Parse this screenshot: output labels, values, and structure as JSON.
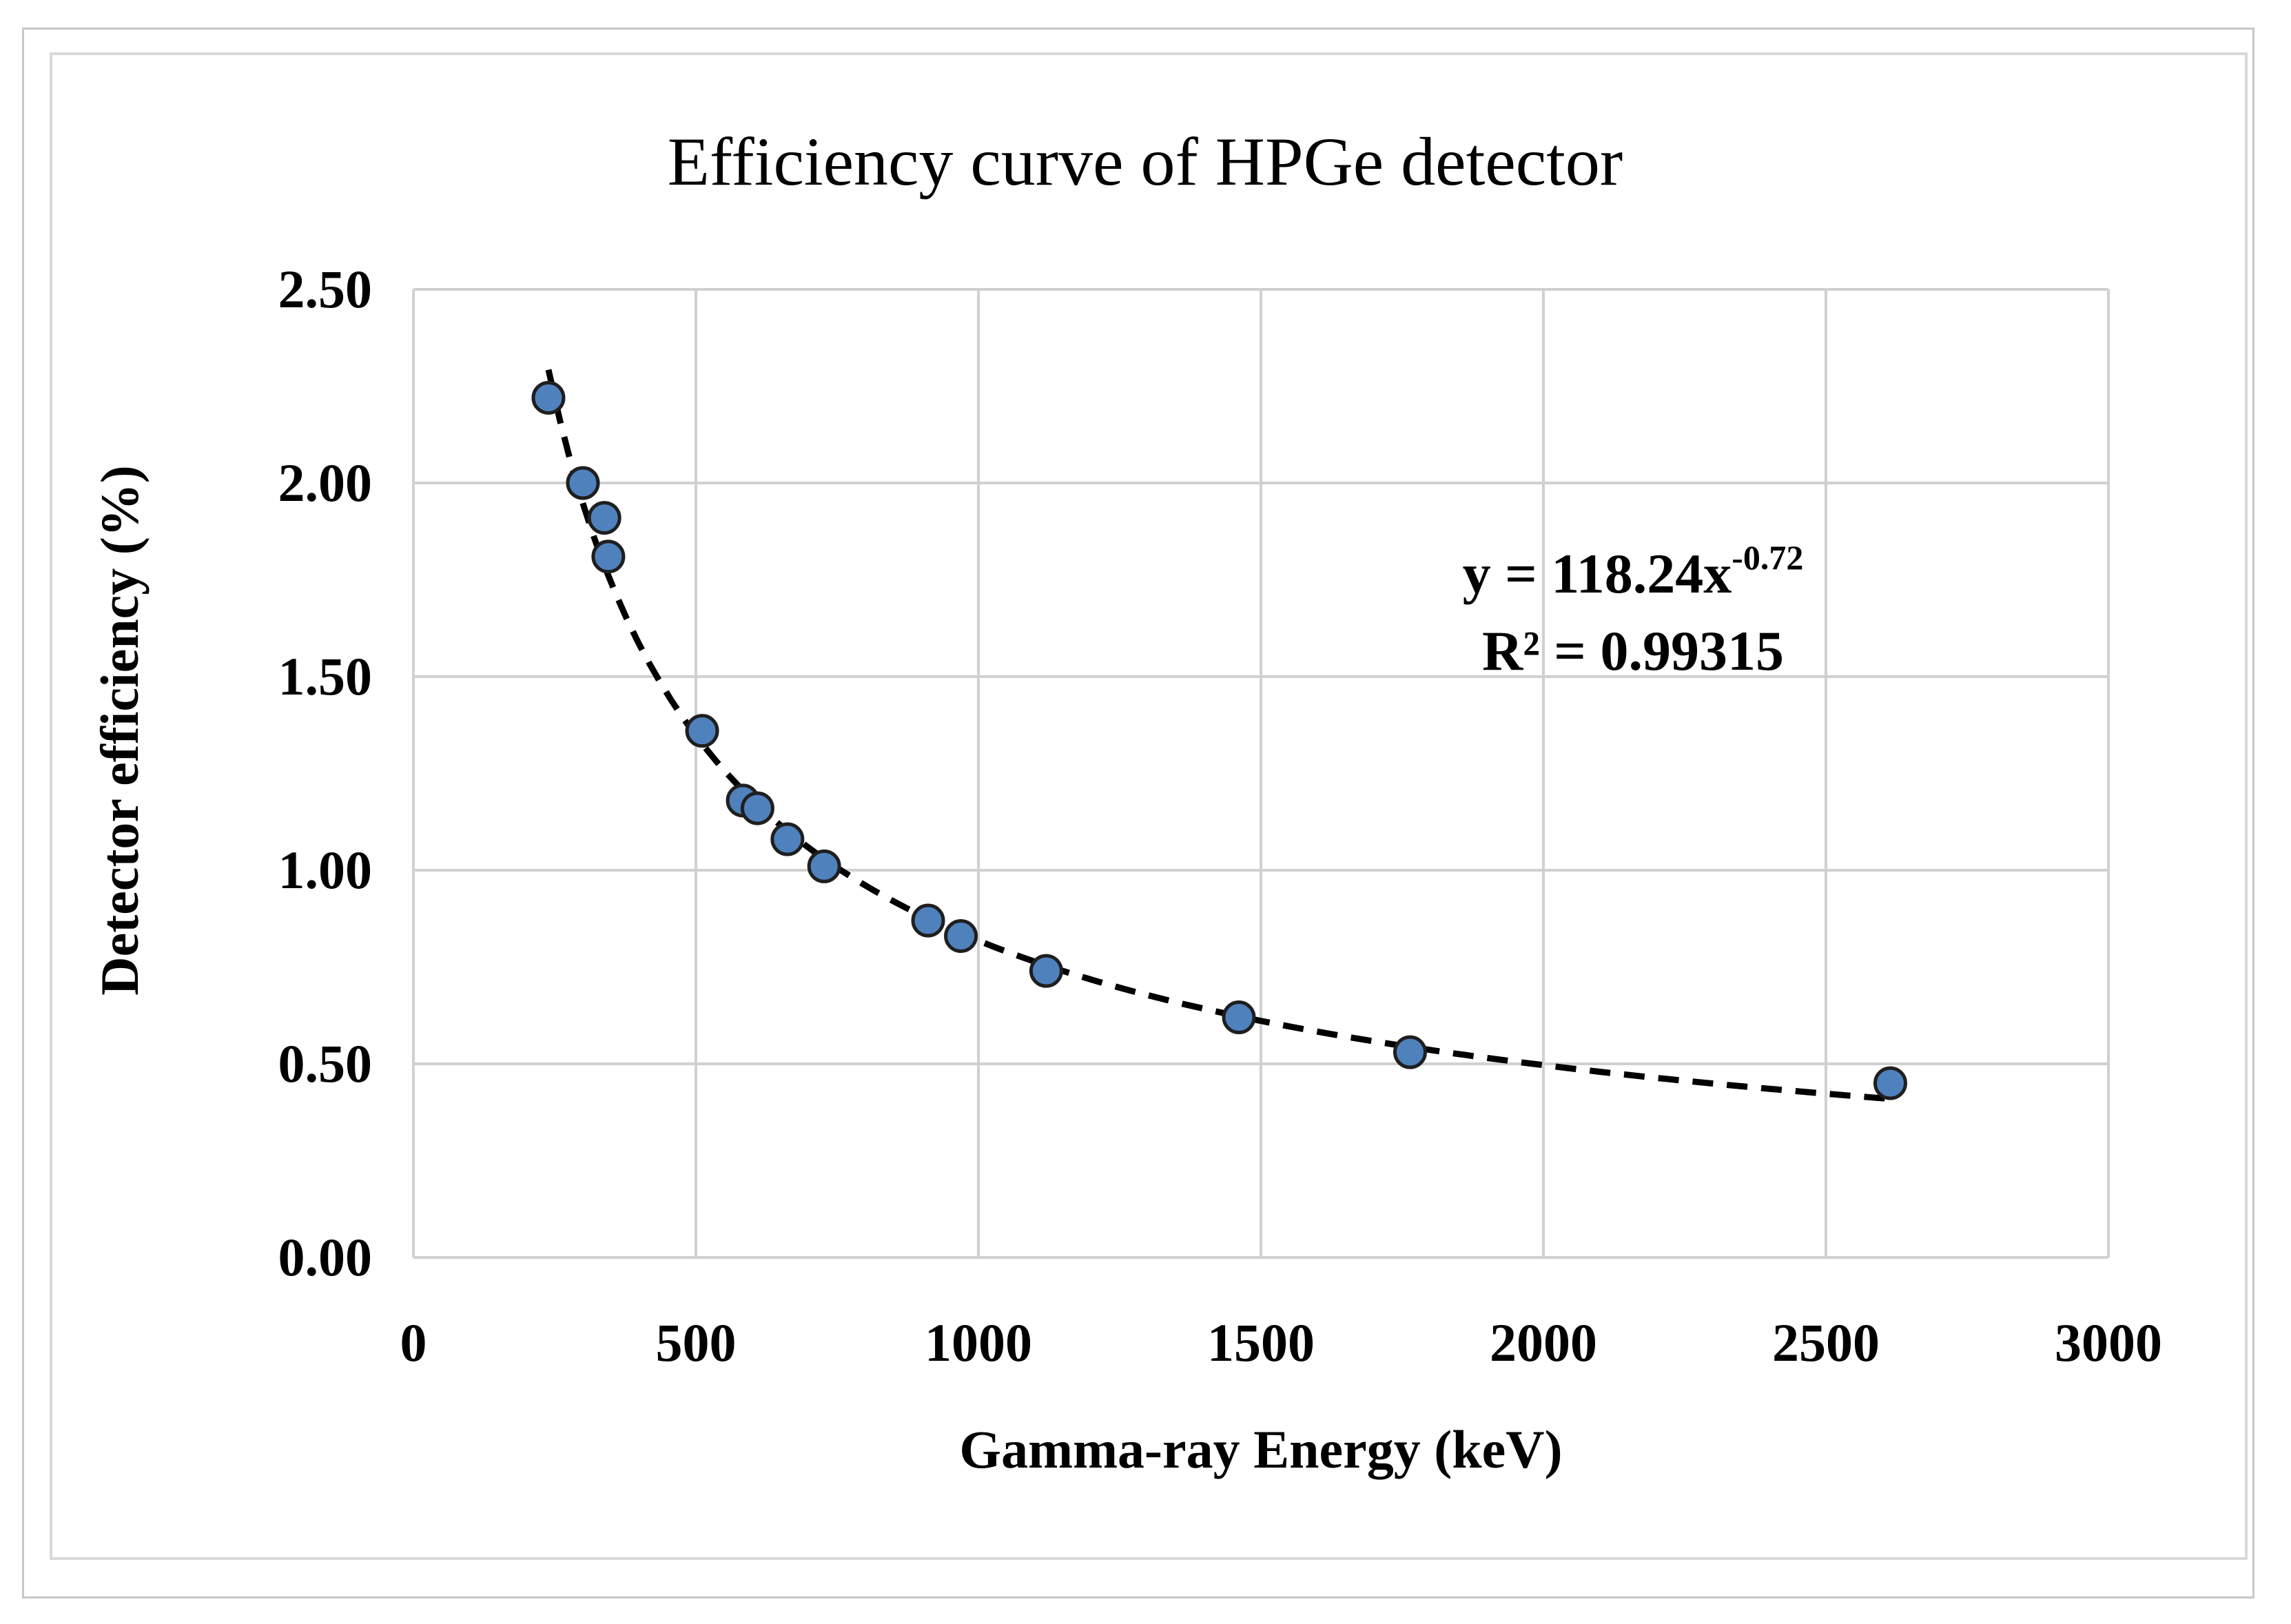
{
  "chart_data": {
    "type": "scatter",
    "title": "Efficiency curve of HPGe detector",
    "xlabel": "Gamma-ray Energy (keV)",
    "ylabel": "Detector efficiency (%)",
    "xlim": [
      0,
      3000
    ],
    "ylim": [
      0,
      2.5
    ],
    "xticks": [
      "0",
      "500",
      "1000",
      "1500",
      "2000",
      "2500",
      "3000"
    ],
    "yticks": [
      "0.00",
      "0.50",
      "1.00",
      "1.50",
      "2.00",
      "2.50"
    ],
    "grid": true,
    "legend": "none",
    "colors": {
      "points": "#4f81bd",
      "trendline": "#000000",
      "grid": "#d0d0d0"
    },
    "series": [
      {
        "x": [
          239,
          300,
          338,
          345,
          511,
          583,
          609,
          662,
          727,
          911,
          969,
          1120,
          1461,
          1764,
          2614
        ],
        "y": [
          2.22,
          2.0,
          1.91,
          1.81,
          1.36,
          1.18,
          1.16,
          1.08,
          1.01,
          0.87,
          0.83,
          0.74,
          0.62,
          0.53,
          0.45
        ]
      }
    ],
    "trendline": {
      "type": "power",
      "coefficient": 118.24,
      "exponent": -0.72,
      "x_range": [
        239,
        2614
      ],
      "equation_label": "y = 118.24x",
      "equation_exponent": "-0.72",
      "r2_label": "R² = 0.99315"
    }
  }
}
